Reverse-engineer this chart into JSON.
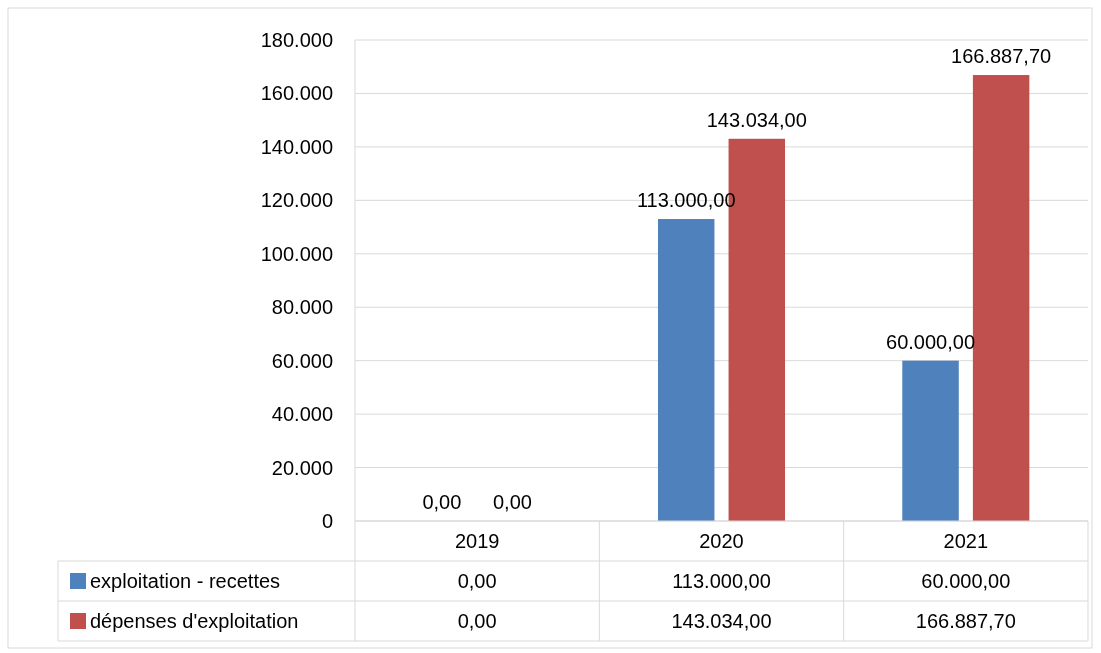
{
  "chart_data": {
    "type": "bar",
    "categories": [
      "2019",
      "2020",
      "2021"
    ],
    "series": [
      {
        "name": "exploitation - recettes",
        "color": "#4f81bd",
        "values": [
          0,
          113000,
          60000
        ],
        "value_labels": [
          "0,00",
          "113.000,00",
          "60.000,00"
        ]
      },
      {
        "name": "dépenses d'exploitation",
        "color": "#c0504d",
        "values": [
          0,
          143034,
          166887.7
        ],
        "value_labels": [
          "0,00",
          "143.034,00",
          "166.887,70"
        ]
      }
    ],
    "ylim": [
      0,
      180000
    ],
    "yticks": [
      {
        "value": 0,
        "label": "0"
      },
      {
        "value": 20000,
        "label": "20.000"
      },
      {
        "value": 40000,
        "label": "40.000"
      },
      {
        "value": 60000,
        "label": "60.000"
      },
      {
        "value": 80000,
        "label": "80.000"
      },
      {
        "value": 100000,
        "label": "100.000"
      },
      {
        "value": 120000,
        "label": "120.000"
      },
      {
        "value": 140000,
        "label": "140.000"
      },
      {
        "value": 160000,
        "label": "160.000"
      },
      {
        "value": 180000,
        "label": "180.000"
      }
    ],
    "grid": "y",
    "legend": "bottom"
  }
}
